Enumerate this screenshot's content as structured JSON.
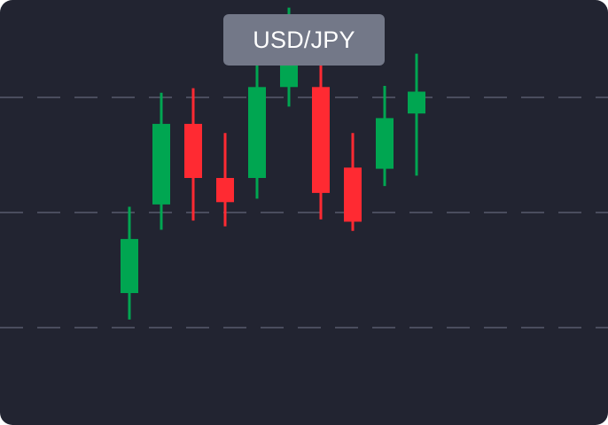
{
  "chart_data": {
    "type": "candlestick",
    "title": "USD/JPY",
    "xlabel": "",
    "ylabel": "",
    "grid": "horizontal-dashed",
    "grid_levels": [
      1,
      2,
      3
    ],
    "ylim": [
      0.5,
      3.57
    ],
    "candles": [
      {
        "open": 1.3,
        "close": 1.77,
        "high": 2.05,
        "low": 1.07
      },
      {
        "open": 2.07,
        "close": 2.77,
        "high": 3.04,
        "low": 1.85
      },
      {
        "open": 2.77,
        "close": 2.3,
        "high": 3.08,
        "low": 1.93
      },
      {
        "open": 2.3,
        "close": 2.09,
        "high": 2.69,
        "low": 1.88
      },
      {
        "open": 2.3,
        "close": 3.09,
        "high": 3.35,
        "low": 2.12
      },
      {
        "open": 3.09,
        "close": 3.58,
        "high": 3.78,
        "low": 2.92
      },
      {
        "open": 3.09,
        "close": 2.17,
        "high": 3.35,
        "low": 1.94
      },
      {
        "open": 2.39,
        "close": 1.92,
        "high": 2.69,
        "low": 1.84
      },
      {
        "open": 2.38,
        "close": 2.82,
        "high": 3.1,
        "low": 2.23
      },
      {
        "open": 2.86,
        "close": 3.05,
        "high": 3.38,
        "low": 2.32
      }
    ],
    "colors": {
      "up": "#00a651",
      "down": "#ff2a32",
      "grid": "#4a4d5e",
      "background": "#222431",
      "badge": "#737888"
    }
  }
}
